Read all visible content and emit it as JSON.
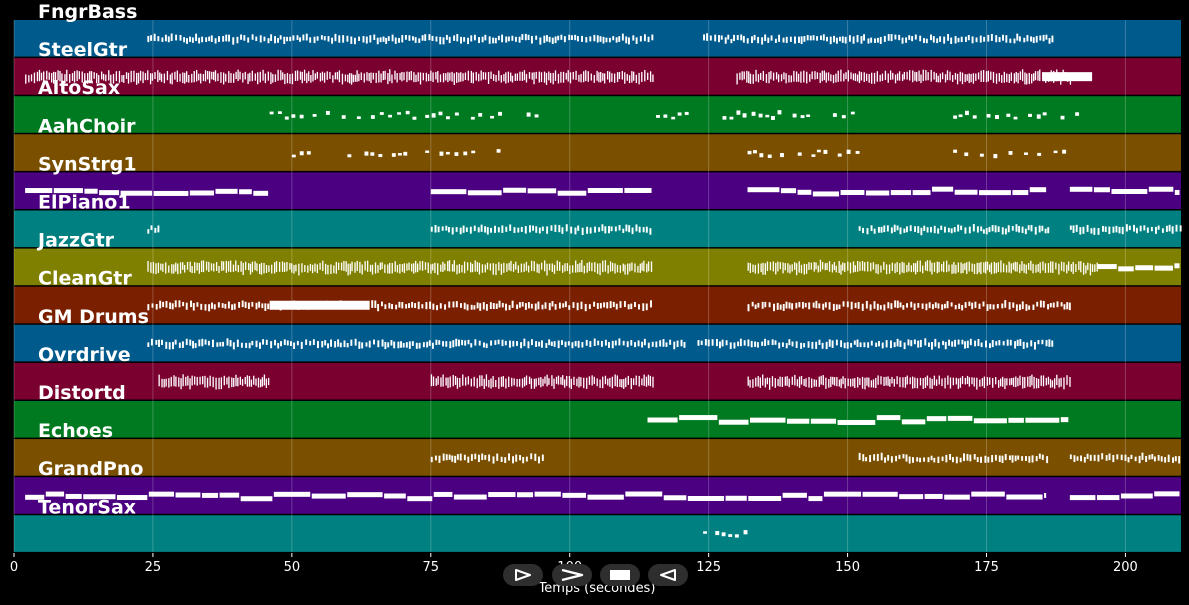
{
  "player": {
    "xlabel": "Temps (secondes)",
    "xlim": [
      0,
      210
    ],
    "x_ticks": [
      0,
      25,
      50,
      75,
      100,
      125,
      150,
      175,
      200
    ],
    "grid": true,
    "controls": [
      {
        "icon": "play-outline-icon",
        "name": "play-button"
      },
      {
        "icon": "fast-forward-icon",
        "name": "forward-button"
      },
      {
        "icon": "stop-icon",
        "name": "stop-button"
      },
      {
        "icon": "rewind-icon",
        "name": "rewind-button"
      }
    ]
  },
  "chart_data": {
    "type": "piano-roll",
    "xlabel": "Temps (secondes)",
    "xlim": [
      0,
      210
    ],
    "tracks": [
      {
        "name": "FngrBass",
        "color": "#005a8c",
        "segments": [
          [
            24,
            115,
            "dense"
          ],
          [
            124,
            187,
            "dense"
          ]
        ]
      },
      {
        "name": "SteelGtr",
        "color": "#7a0030",
        "segments": [
          [
            2,
            115,
            "heavy"
          ],
          [
            130,
            190,
            "heavy"
          ],
          [
            185,
            194,
            "solid"
          ]
        ]
      },
      {
        "name": "AltoSax",
        "color": "#007a20",
        "segments": [
          [
            46,
            72,
            "sparse"
          ],
          [
            74,
            95,
            "sparse"
          ],
          [
            114,
            152,
            "sparse"
          ],
          [
            169,
            191,
            "sparse"
          ]
        ]
      },
      {
        "name": "AahChoir",
        "color": "#7a5000",
        "segments": [
          [
            50,
            54,
            "sparse"
          ],
          [
            60,
            66,
            "sparse"
          ],
          [
            68,
            72,
            "sparse"
          ],
          [
            74,
            95,
            "sparse"
          ],
          [
            132,
            152,
            "sparse"
          ],
          [
            169,
            190,
            "sparse"
          ]
        ]
      },
      {
        "name": "SynStrg1",
        "color": "#4a0080",
        "segments": [
          [
            2,
            46,
            "long"
          ],
          [
            75,
            115,
            "long"
          ],
          [
            132,
            186,
            "long"
          ],
          [
            190,
            210,
            "long"
          ]
        ]
      },
      {
        "name": "ElPiano1",
        "color": "#008080",
        "segments": [
          [
            24,
            26,
            "dense"
          ],
          [
            75,
            115,
            "dense"
          ],
          [
            152,
            186,
            "dense"
          ],
          [
            190,
            210,
            "dense"
          ]
        ]
      },
      {
        "name": "JazzGtr",
        "color": "#808000",
        "segments": [
          [
            24,
            115,
            "heavy"
          ],
          [
            132,
            195,
            "heavy"
          ],
          [
            195,
            210,
            "long"
          ]
        ]
      },
      {
        "name": "CleanGtr",
        "color": "#7a2000",
        "segments": [
          [
            24,
            115,
            "dense"
          ],
          [
            46,
            64,
            "solid"
          ],
          [
            132,
            190,
            "dense"
          ]
        ]
      },
      {
        "name": "GM Drums",
        "color": "#005a8c",
        "segments": [
          [
            24,
            121,
            "dense"
          ],
          [
            123,
            187,
            "dense"
          ]
        ]
      },
      {
        "name": "Ovrdrive",
        "color": "#7a0030",
        "segments": [
          [
            26,
            46,
            "heavy"
          ],
          [
            75,
            115,
            "heavy"
          ],
          [
            132,
            190,
            "heavy"
          ]
        ]
      },
      {
        "name": "Distortd",
        "color": "#007a20",
        "segments": [
          [
            114,
            190,
            "long"
          ]
        ]
      },
      {
        "name": "Echoes",
        "color": "#7a5000",
        "segments": [
          [
            75,
            95,
            "dense"
          ],
          [
            152,
            186,
            "dense"
          ],
          [
            190,
            210,
            "dense"
          ]
        ]
      },
      {
        "name": "GrandPno",
        "color": "#4a0080",
        "segments": [
          [
            2,
            186,
            "long"
          ],
          [
            190,
            210,
            "long"
          ]
        ]
      },
      {
        "name": "TenorSax",
        "color": "#008080",
        "segments": [
          [
            124,
            132,
            "sparse"
          ]
        ]
      }
    ]
  }
}
